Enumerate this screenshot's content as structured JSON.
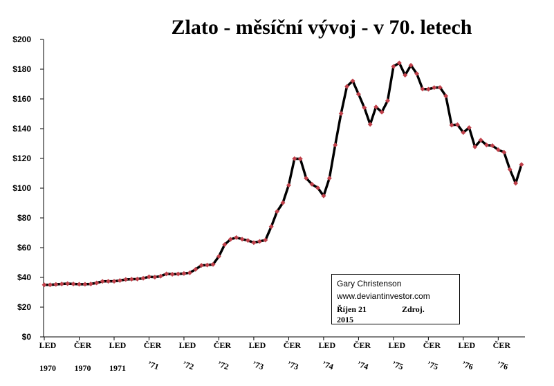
{
  "chart_data": {
    "type": "line",
    "title": "Zlato - měsíční vývoj - v 70. letech",
    "ylim": [
      0,
      200
    ],
    "yticks": [
      "$0",
      "$20",
      "$40",
      "$60",
      "$80",
      "$100",
      "$120",
      "$140",
      "$160",
      "$180",
      "$200"
    ],
    "grid": false,
    "line_color": "#000000",
    "marker_color": "#c0404a",
    "x_labels_row1": [
      "LED",
      "ČER",
      "LED",
      "ČER",
      "LED",
      "ČER",
      "LED",
      "ČER",
      "LED",
      "ČER",
      "LED",
      "ČER",
      "LED",
      "ČER"
    ],
    "x_labels_row2": [
      "1970",
      "1970",
      "1971",
      "71",
      "72",
      "72",
      "73",
      "73",
      "74",
      "74",
      "75",
      "75",
      "76",
      "76"
    ],
    "series": [
      {
        "values": [
          35,
          35,
          35.3,
          35.6,
          35.8,
          35.6,
          35.4,
          35.4,
          35.6,
          36.3,
          37.3,
          37.4,
          37.4,
          37.9,
          38.6,
          38.8,
          38.9,
          39.4,
          40.4,
          40.2,
          40.8,
          42.4,
          42.1,
          42.3,
          42.6,
          43.1,
          45.4,
          48.1,
          48.3,
          48.7,
          54.1,
          62.1,
          65.6,
          66.8,
          65.7,
          64.8,
          63.4,
          64.2,
          65.1,
          74.1,
          84.3,
          90.2,
          102,
          119.8,
          119.7,
          106.7,
          102.6,
          100.2,
          94.8,
          106.7,
          129,
          150.2,
          168.4,
          172.1,
          163.2,
          154.1,
          142.9,
          154.6,
          151.1,
          158.8,
          181.8,
          184.2,
          176,
          182.6,
          177,
          166.7,
          166.5,
          167.6,
          167.7,
          162,
          142.4,
          142.7,
          137.4,
          140.7,
          127.8,
          132.3,
          129,
          128.6,
          125.8,
          124.1,
          112.6,
          103.3,
          115.9
        ]
      }
    ]
  },
  "source_box": {
    "author": "Gary Christenson",
    "url": "www.deviantinvestor.com",
    "date": "Říjen 21",
    "zdroj": "Zdroj.",
    "year": "2015"
  }
}
